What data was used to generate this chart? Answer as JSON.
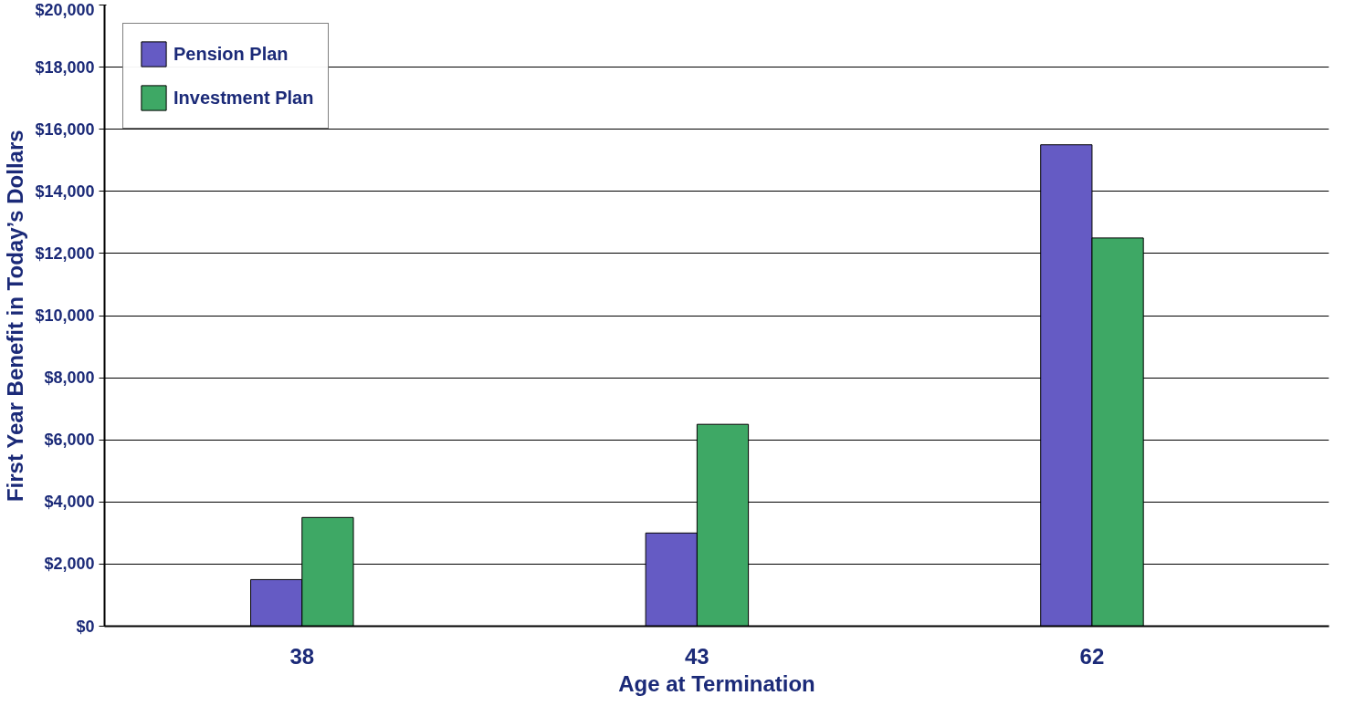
{
  "chart_data": {
    "type": "bar",
    "xlabel": "Age at Termination",
    "ylabel": "First Year Benefit in Today’s Dollars",
    "categories": [
      "38",
      "43",
      "62"
    ],
    "series": [
      {
        "name": "Pension Plan",
        "color": "#655bc4",
        "values": [
          1500,
          3000,
          15500
        ]
      },
      {
        "name": "Investment Plan",
        "color": "#3ea865",
        "values": [
          3500,
          6500,
          12500
        ]
      }
    ],
    "ylim": [
      0,
      20000
    ],
    "yticks": [
      {
        "value": 0,
        "label": "$0"
      },
      {
        "value": 2000,
        "label": "$2,000"
      },
      {
        "value": 4000,
        "label": "$4,000"
      },
      {
        "value": 6000,
        "label": "$6,000"
      },
      {
        "value": 8000,
        "label": "$8,000"
      },
      {
        "value": 10000,
        "label": "$10,000"
      },
      {
        "value": 12000,
        "label": "$12,000"
      },
      {
        "value": 14000,
        "label": "$14,000"
      },
      {
        "value": 16000,
        "label": "$16,000"
      },
      {
        "value": 18000,
        "label": "$18,000"
      },
      {
        "value": 20000,
        "label": "$20,000"
      }
    ],
    "grid": "y",
    "legend": "top left"
  }
}
